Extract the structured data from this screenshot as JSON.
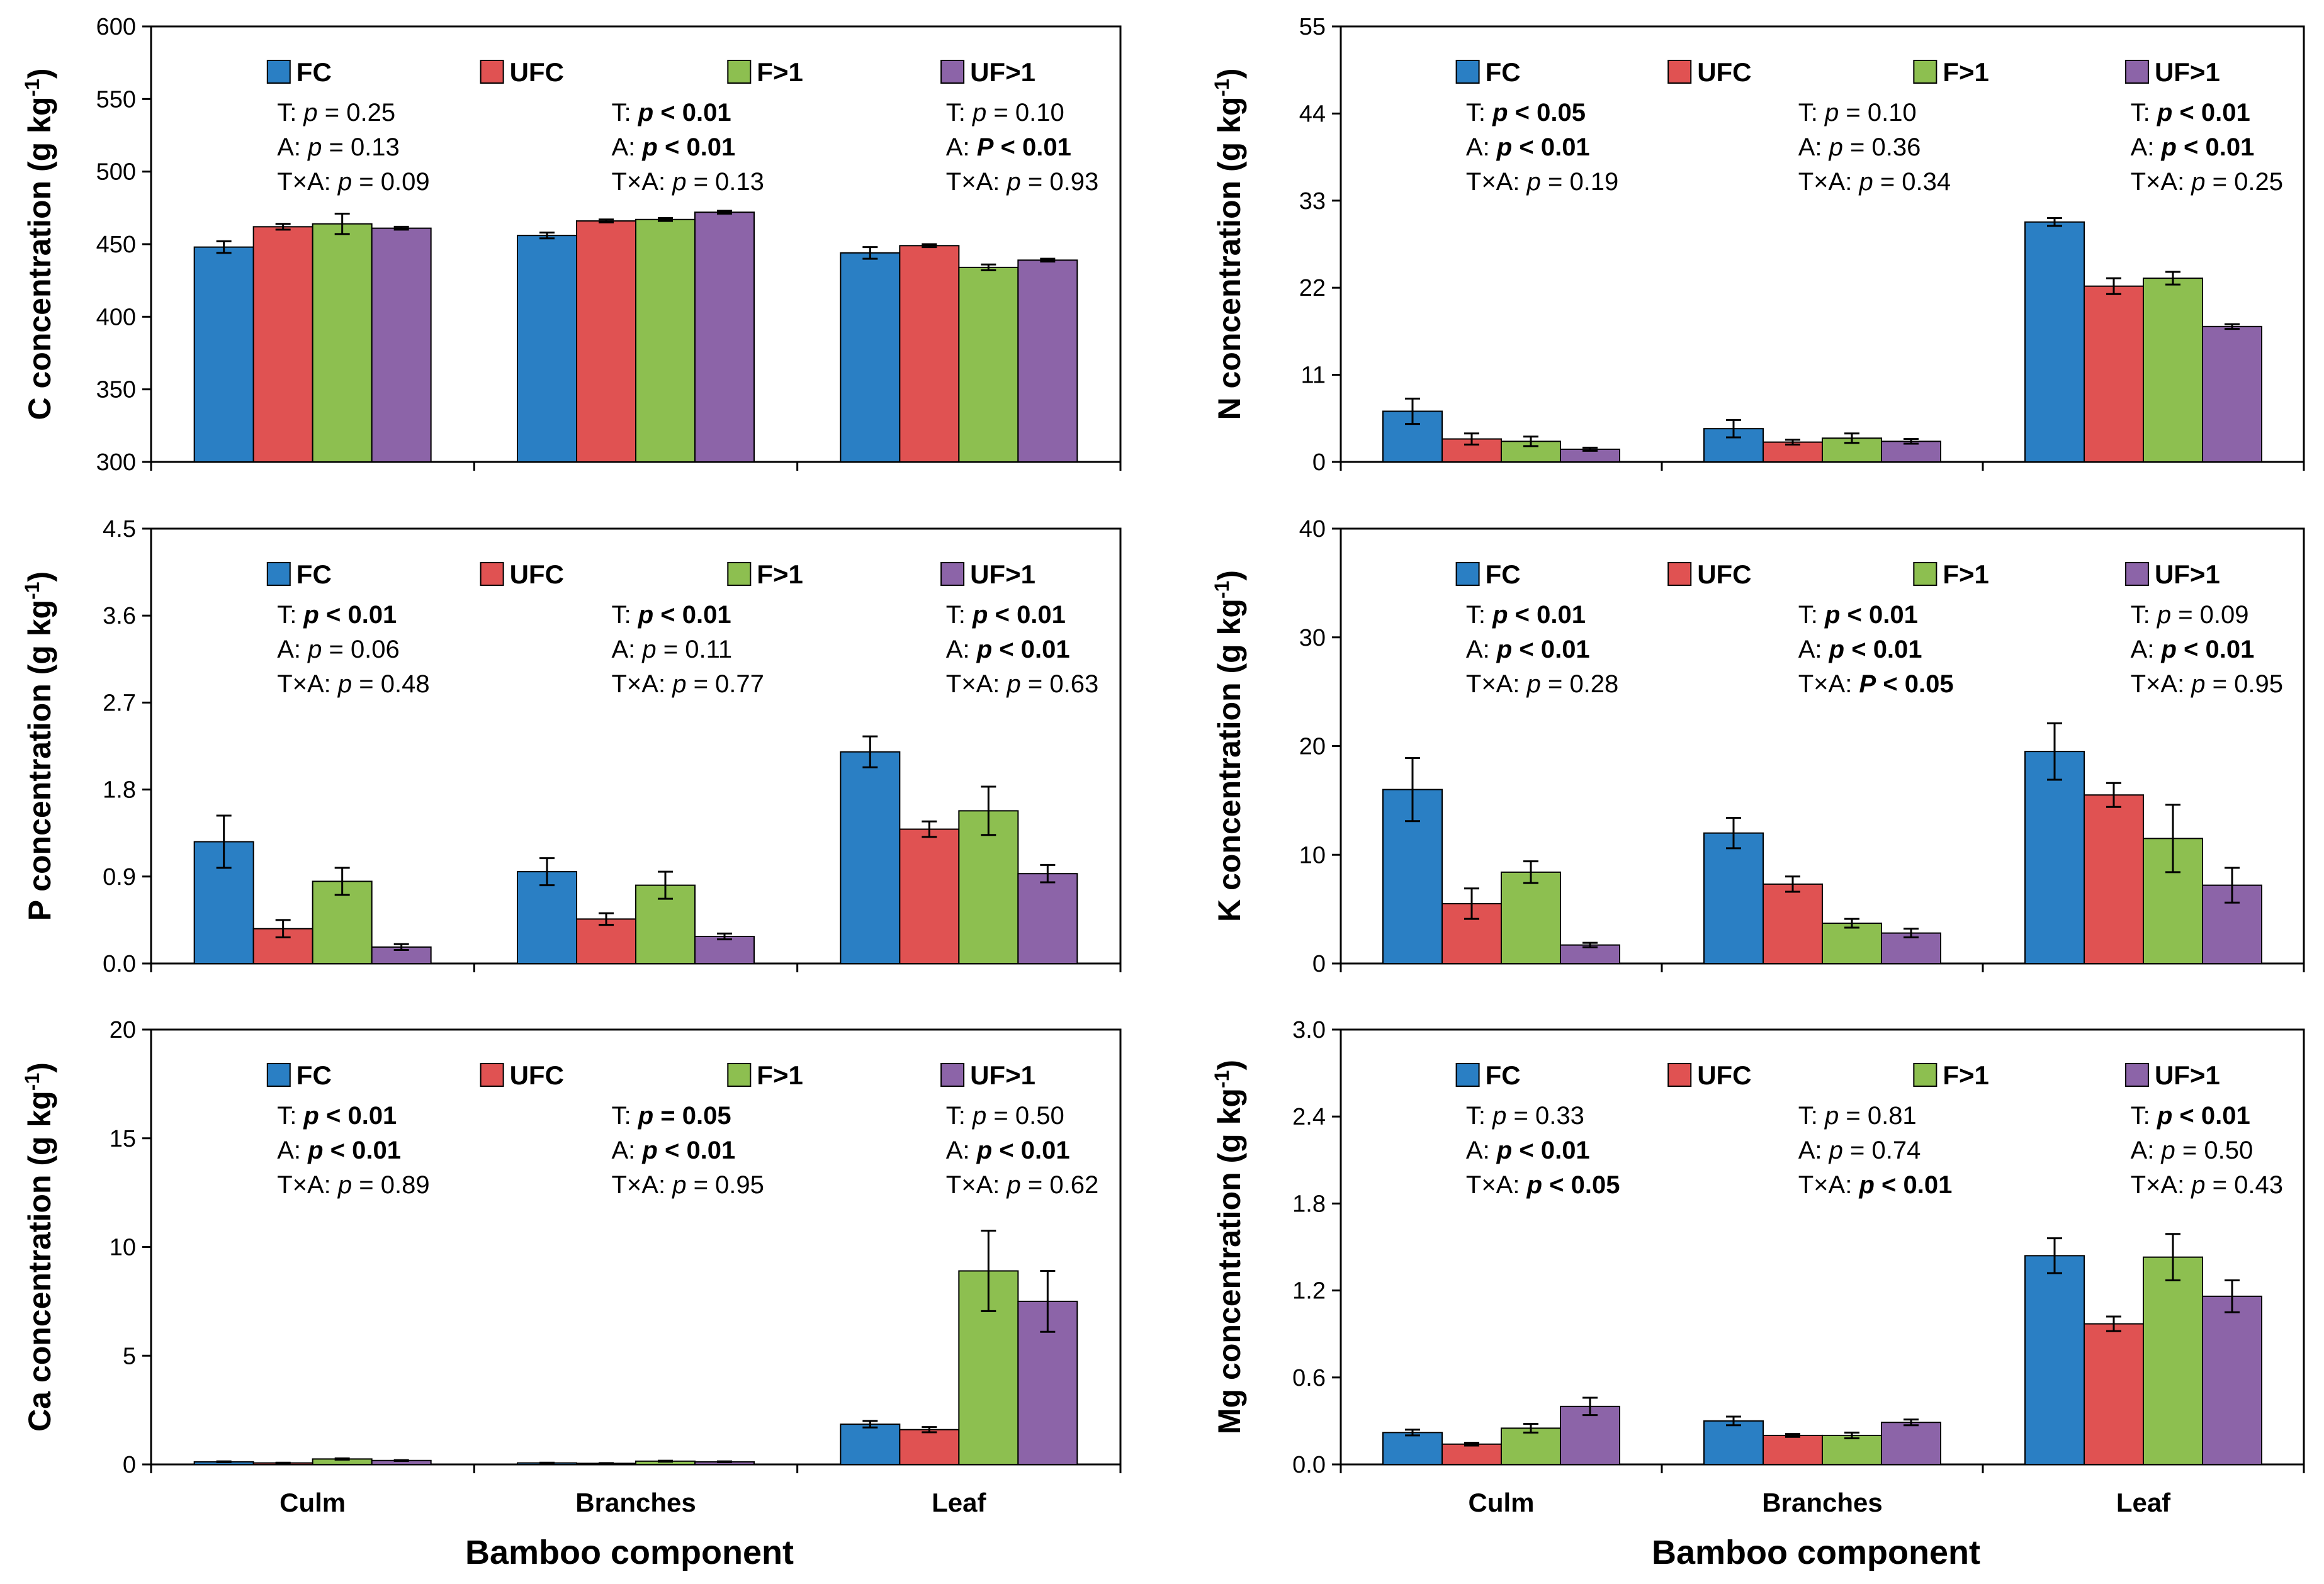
{
  "figure": {
    "x_title": "Bamboo component",
    "x_categories": [
      "Culm",
      "Branches",
      "Leaf"
    ],
    "legend": [
      {
        "label": "FC",
        "color": "#2a7fc4"
      },
      {
        "label": "UFC",
        "color": "#e05252"
      },
      {
        "label": "F>1",
        "color": "#8dbf50"
      },
      {
        "label": "UF>1",
        "color": "#8c64a8"
      }
    ],
    "bar_edge_color": "#000000",
    "stat_labels": {
      "t": "T: ",
      "a": "A: ",
      "ta": "T×A: ",
      "p": "p",
      "eq": " = ",
      "lt": " < "
    }
  },
  "chart_data": [
    {
      "type": "bar",
      "panel": "top-left",
      "element": "C",
      "ylabel": "C concentration (g kg-1)",
      "ylim": [
        300,
        600
      ],
      "yticks": [
        "300",
        "350",
        "400",
        "450",
        "500",
        "550",
        "600"
      ],
      "categories": [
        "Culm",
        "Branches",
        "Leaf"
      ],
      "series": [
        {
          "name": "FC",
          "values": [
            448,
            456,
            444
          ],
          "errors": [
            4,
            2,
            4
          ]
        },
        {
          "name": "UFC",
          "values": [
            462,
            466,
            449
          ],
          "errors": [
            2,
            1,
            1
          ]
        },
        {
          "name": "F>1",
          "values": [
            464,
            467,
            434
          ],
          "errors": [
            7,
            1,
            2
          ]
        },
        {
          "name": "UF>1",
          "values": [
            461,
            472,
            439
          ],
          "errors": [
            1,
            1,
            1
          ]
        }
      ],
      "stats": [
        {
          "t": {
            "sym": "p",
            "op": "=",
            "val": "0.25",
            "bold": false
          },
          "a": {
            "sym": "p",
            "op": "=",
            "val": "0.13",
            "bold": false
          },
          "ta": {
            "sym": "p",
            "op": "=",
            "val": "0.09",
            "bold": false
          }
        },
        {
          "t": {
            "sym": "p",
            "op": "<",
            "val": "0.01",
            "bold": true
          },
          "a": {
            "sym": "p",
            "op": "<",
            "val": "0.01",
            "bold": true
          },
          "ta": {
            "sym": "p",
            "op": "=",
            "val": "0.13",
            "bold": false
          }
        },
        {
          "t": {
            "sym": "p",
            "op": "=",
            "val": "0.10",
            "bold": false
          },
          "a": {
            "sym": "P",
            "op": "<",
            "val": "0.01",
            "bold": true
          },
          "ta": {
            "sym": "p",
            "op": "=",
            "val": "0.93",
            "bold": false
          }
        }
      ]
    },
    {
      "type": "bar",
      "panel": "top-right",
      "element": "N",
      "ylabel": "N concentration (g kg-1)",
      "ylim": [
        0,
        55
      ],
      "yticks": [
        "0",
        "11",
        "22",
        "33",
        "44",
        "55"
      ],
      "categories": [
        "Culm",
        "Branches",
        "Leaf"
      ],
      "series": [
        {
          "name": "FC",
          "values": [
            6.4,
            4.2,
            30.3
          ],
          "errors": [
            1.6,
            1.1,
            0.5
          ]
        },
        {
          "name": "UFC",
          "values": [
            2.9,
            2.5,
            22.2
          ],
          "errors": [
            0.7,
            0.3,
            1.0
          ]
        },
        {
          "name": "F>1",
          "values": [
            2.6,
            3.0,
            23.2
          ],
          "errors": [
            0.6,
            0.6,
            0.8
          ]
        },
        {
          "name": "UF>1",
          "values": [
            1.6,
            2.6,
            17.1
          ],
          "errors": [
            0.2,
            0.3,
            0.3
          ]
        }
      ],
      "stats": [
        {
          "t": {
            "sym": "p",
            "op": "<",
            "val": "0.05",
            "bold": true
          },
          "a": {
            "sym": "p",
            "op": "<",
            "val": "0.01",
            "bold": true
          },
          "ta": {
            "sym": "p",
            "op": "=",
            "val": "0.19",
            "bold": false
          }
        },
        {
          "t": {
            "sym": "p",
            "op": "=",
            "val": "0.10",
            "bold": false
          },
          "a": {
            "sym": "p",
            "op": "=",
            "val": "0.36",
            "bold": false
          },
          "ta": {
            "sym": "p",
            "op": "=",
            "val": "0.34",
            "bold": false
          }
        },
        {
          "t": {
            "sym": "p",
            "op": "<",
            "val": "0.01",
            "bold": true
          },
          "a": {
            "sym": "p",
            "op": "<",
            "val": "0.01",
            "bold": true
          },
          "ta": {
            "sym": "p",
            "op": "=",
            "val": "0.25",
            "bold": false
          }
        }
      ]
    },
    {
      "type": "bar",
      "panel": "middle-left",
      "element": "P",
      "ylabel": "P concentration (g kg-1)",
      "ylim": [
        0,
        4.5
      ],
      "yticks": [
        "0.0",
        "0.9",
        "1.8",
        "2.7",
        "3.6",
        "4.5"
      ],
      "categories": [
        "Culm",
        "Branches",
        "Leaf"
      ],
      "series": [
        {
          "name": "FC",
          "values": [
            1.26,
            0.95,
            2.19
          ],
          "errors": [
            0.27,
            0.14,
            0.16
          ]
        },
        {
          "name": "UFC",
          "values": [
            0.36,
            0.46,
            1.39
          ],
          "errors": [
            0.09,
            0.06,
            0.08
          ]
        },
        {
          "name": "F>1",
          "values": [
            0.85,
            0.81,
            1.58
          ],
          "errors": [
            0.14,
            0.14,
            0.25
          ]
        },
        {
          "name": "UF>1",
          "values": [
            0.17,
            0.28,
            0.93
          ],
          "errors": [
            0.03,
            0.03,
            0.09
          ]
        }
      ],
      "stats": [
        {
          "t": {
            "sym": "p",
            "op": "<",
            "val": "0.01",
            "bold": true
          },
          "a": {
            "sym": "p",
            "op": "=",
            "val": "0.06",
            "bold": false
          },
          "ta": {
            "sym": "p",
            "op": "=",
            "val": "0.48",
            "bold": false
          }
        },
        {
          "t": {
            "sym": "p",
            "op": "<",
            "val": "0.01",
            "bold": true
          },
          "a": {
            "sym": "p",
            "op": "=",
            "val": "0.11",
            "bold": false
          },
          "ta": {
            "sym": "p",
            "op": "=",
            "val": "0.77",
            "bold": false
          }
        },
        {
          "t": {
            "sym": "p",
            "op": "<",
            "val": "0.01",
            "bold": true
          },
          "a": {
            "sym": "p",
            "op": "<",
            "val": "0.01",
            "bold": true
          },
          "ta": {
            "sym": "p",
            "op": "=",
            "val": "0.63",
            "bold": false
          }
        }
      ]
    },
    {
      "type": "bar",
      "panel": "middle-right",
      "element": "K",
      "ylabel": "K concentration (g kg-1)",
      "ylim": [
        0,
        40
      ],
      "yticks": [
        "0",
        "10",
        "20",
        "30",
        "40"
      ],
      "categories": [
        "Culm",
        "Branches",
        "Leaf"
      ],
      "series": [
        {
          "name": "FC",
          "values": [
            16.0,
            12.0,
            19.5
          ],
          "errors": [
            2.9,
            1.4,
            2.6
          ]
        },
        {
          "name": "UFC",
          "values": [
            5.5,
            7.3,
            15.5
          ],
          "errors": [
            1.4,
            0.7,
            1.1
          ]
        },
        {
          "name": "F>1",
          "values": [
            8.4,
            3.7,
            11.5
          ],
          "errors": [
            1.0,
            0.4,
            3.1
          ]
        },
        {
          "name": "UF>1",
          "values": [
            1.7,
            2.8,
            7.2
          ],
          "errors": [
            0.2,
            0.4,
            1.6
          ]
        }
      ],
      "stats": [
        {
          "t": {
            "sym": "p",
            "op": "<",
            "val": "0.01",
            "bold": true
          },
          "a": {
            "sym": "p",
            "op": "<",
            "val": "0.01",
            "bold": true
          },
          "ta": {
            "sym": "p",
            "op": "=",
            "val": "0.28",
            "bold": false
          }
        },
        {
          "t": {
            "sym": "p",
            "op": "<",
            "val": "0.01",
            "bold": true
          },
          "a": {
            "sym": "p",
            "op": "<",
            "val": "0.01",
            "bold": true
          },
          "ta": {
            "sym": "P",
            "op": "<",
            "val": "0.05",
            "bold": true
          }
        },
        {
          "t": {
            "sym": "p",
            "op": "=",
            "val": "0.09",
            "bold": false
          },
          "a": {
            "sym": "p",
            "op": "<",
            "val": "0.01",
            "bold": true
          },
          "ta": {
            "sym": "p",
            "op": "=",
            "val": "0.95",
            "bold": false
          }
        }
      ]
    },
    {
      "type": "bar",
      "panel": "bottom-left",
      "element": "Ca",
      "ylabel": "Ca concentration (g kg-1)",
      "ylim": [
        0,
        20
      ],
      "yticks": [
        "0",
        "5",
        "10",
        "15",
        "20"
      ],
      "categories": [
        "Culm",
        "Branches",
        "Leaf"
      ],
      "series": [
        {
          "name": "FC",
          "values": [
            0.12,
            0.07,
            1.85
          ],
          "errors": [
            0.02,
            0.01,
            0.15
          ]
        },
        {
          "name": "UFC",
          "values": [
            0.07,
            0.05,
            1.6
          ],
          "errors": [
            0.01,
            0.01,
            0.12
          ]
        },
        {
          "name": "F>1",
          "values": [
            0.25,
            0.15,
            8.9
          ],
          "errors": [
            0.03,
            0.02,
            1.85
          ]
        },
        {
          "name": "UF>1",
          "values": [
            0.18,
            0.12,
            7.5
          ],
          "errors": [
            0.02,
            0.02,
            1.4
          ]
        }
      ],
      "stats": [
        {
          "t": {
            "sym": "p",
            "op": "<",
            "val": "0.01",
            "bold": true
          },
          "a": {
            "sym": "p",
            "op": "<",
            "val": "0.01",
            "bold": true
          },
          "ta": {
            "sym": "p",
            "op": "=",
            "val": "0.89",
            "bold": false
          }
        },
        {
          "t": {
            "sym": "p",
            "op": "=",
            "val": "0.05",
            "bold": true
          },
          "a": {
            "sym": "p",
            "op": "<",
            "val": "0.01",
            "bold": true
          },
          "ta": {
            "sym": "p",
            "op": "=",
            "val": "0.95",
            "bold": false
          }
        },
        {
          "t": {
            "sym": "p",
            "op": "=",
            "val": "0.50",
            "bold": false
          },
          "a": {
            "sym": "p",
            "op": "<",
            "val": "0.01",
            "bold": true
          },
          "ta": {
            "sym": "p",
            "op": "=",
            "val": "0.62",
            "bold": false
          }
        }
      ]
    },
    {
      "type": "bar",
      "panel": "bottom-right",
      "element": "Mg",
      "ylabel": "Mg concentration (g kg-1)",
      "ylim": [
        0,
        3.0
      ],
      "yticks": [
        "0.0",
        "0.6",
        "1.2",
        "1.8",
        "2.4",
        "3.0"
      ],
      "categories": [
        "Culm",
        "Branches",
        "Leaf"
      ],
      "series": [
        {
          "name": "FC",
          "values": [
            0.22,
            0.3,
            1.44
          ],
          "errors": [
            0.02,
            0.03,
            0.12
          ]
        },
        {
          "name": "UFC",
          "values": [
            0.14,
            0.2,
            0.97
          ],
          "errors": [
            0.01,
            0.01,
            0.05
          ]
        },
        {
          "name": "F>1",
          "values": [
            0.25,
            0.2,
            1.43
          ],
          "errors": [
            0.03,
            0.02,
            0.16
          ]
        },
        {
          "name": "UF>1",
          "values": [
            0.4,
            0.29,
            1.16
          ],
          "errors": [
            0.06,
            0.02,
            0.11
          ]
        }
      ],
      "stats": [
        {
          "t": {
            "sym": "p",
            "op": "=",
            "val": "0.33",
            "bold": false
          },
          "a": {
            "sym": "p",
            "op": "<",
            "val": "0.01",
            "bold": true
          },
          "ta": {
            "sym": "p",
            "op": "<",
            "val": "0.05",
            "bold": true
          }
        },
        {
          "t": {
            "sym": "p",
            "op": "=",
            "val": "0.81",
            "bold": false
          },
          "a": {
            "sym": "p",
            "op": "=",
            "val": "0.74",
            "bold": false
          },
          "ta": {
            "sym": "p",
            "op": "<",
            "val": "0.01",
            "bold": true
          }
        },
        {
          "t": {
            "sym": "p",
            "op": "<",
            "val": "0.01",
            "bold": true
          },
          "a": {
            "sym": "p",
            "op": "=",
            "val": "0.50",
            "bold": false
          },
          "ta": {
            "sym": "p",
            "op": "=",
            "val": "0.43",
            "bold": false
          }
        }
      ]
    }
  ]
}
